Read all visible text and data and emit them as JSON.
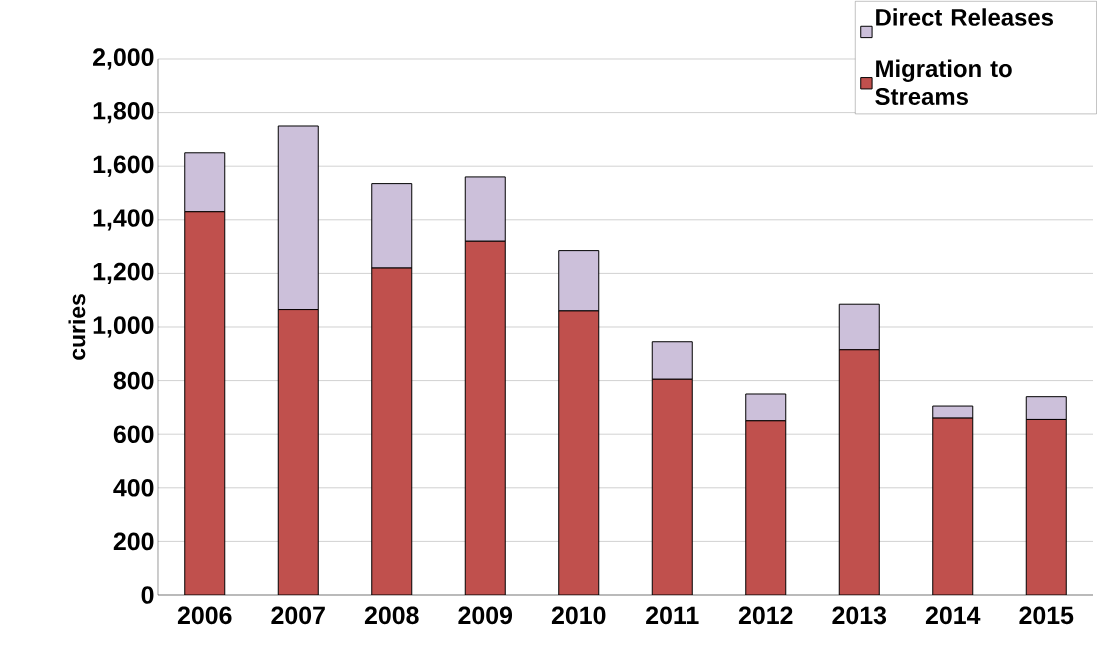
{
  "chart_data": {
    "type": "bar",
    "stacked": true,
    "ylabel": "curies",
    "categories": [
      "2006",
      "2007",
      "2008",
      "2009",
      "2010",
      "2011",
      "2012",
      "2013",
      "2014",
      "2015"
    ],
    "series": [
      {
        "name": "Migration to Streams",
        "color": "#c0504d",
        "values": [
          1430,
          1065,
          1220,
          1320,
          1060,
          805,
          650,
          915,
          660,
          655
        ]
      },
      {
        "name": "Direct Releases",
        "color": "#ccc0da",
        "values": [
          220,
          685,
          315,
          240,
          225,
          140,
          100,
          170,
          45,
          85
        ]
      }
    ],
    "ylim": [
      0,
      2000
    ],
    "yticks": [
      {
        "value": 0,
        "label": "0"
      },
      {
        "value": 200,
        "label": "200"
      },
      {
        "value": 400,
        "label": "400"
      },
      {
        "value": 600,
        "label": "600"
      },
      {
        "value": 800,
        "label": "800"
      },
      {
        "value": 1000,
        "label": "1,000"
      },
      {
        "value": 1200,
        "label": "1,200"
      },
      {
        "value": 1400,
        "label": "1,400"
      },
      {
        "value": 1600,
        "label": "1,600"
      },
      {
        "value": 1800,
        "label": "1,800"
      },
      {
        "value": 2000,
        "label": "2,000"
      }
    ],
    "grid": "y",
    "legend": "top right"
  }
}
